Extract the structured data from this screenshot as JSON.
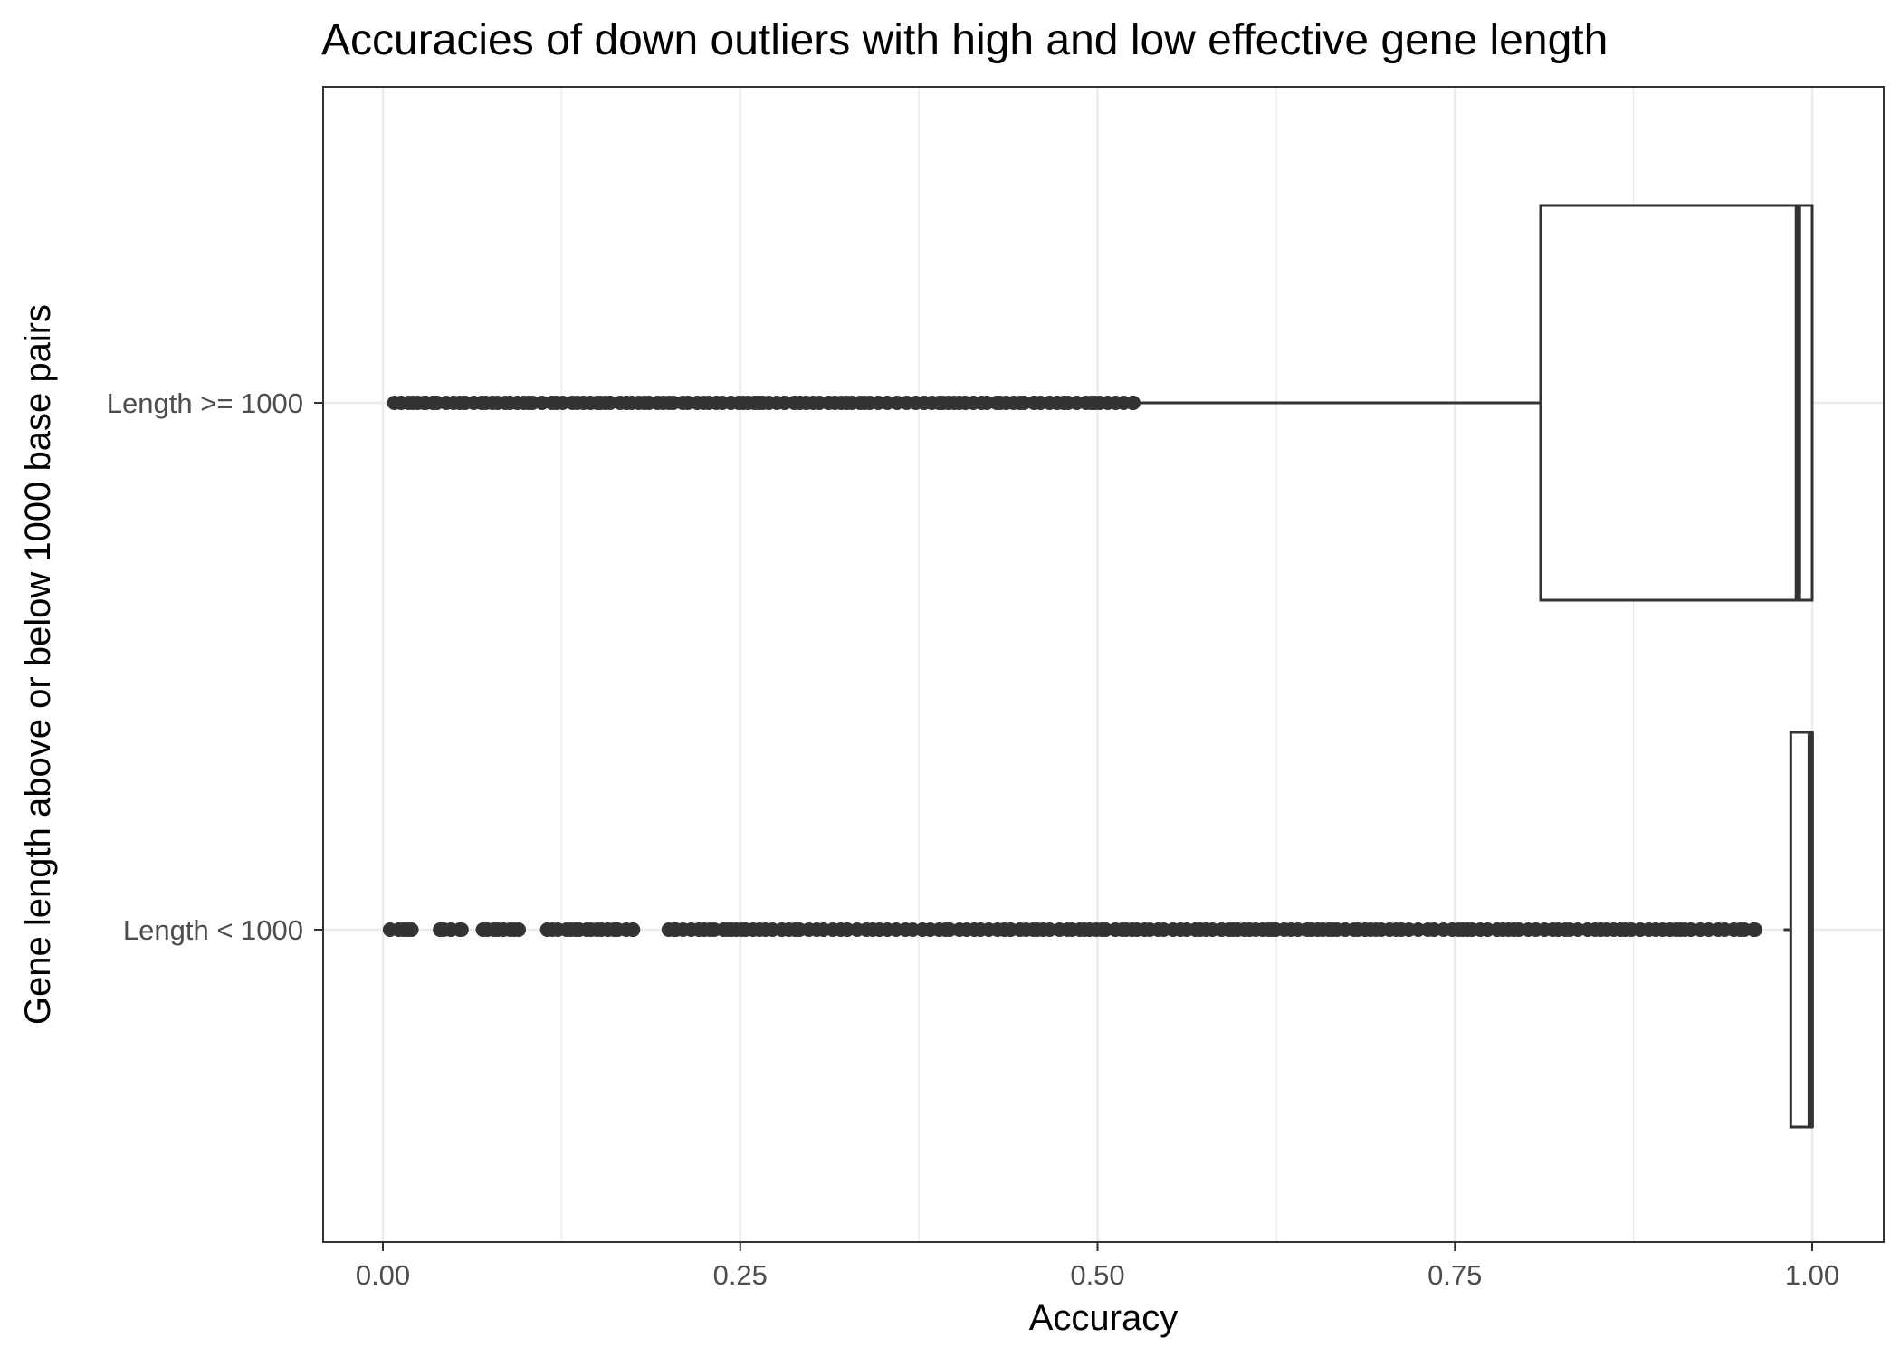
{
  "chart_data": {
    "type": "boxplot",
    "orientation": "horizontal",
    "title": "Accuracies of down outliers with high and low effective gene length",
    "xlabel": "Accuracy",
    "ylabel": "Gene length above or below 1000 base pairs",
    "xlim": [
      -0.02,
      1.03
    ],
    "x_ticks": [
      {
        "value": 0.0,
        "label": "0.00"
      },
      {
        "value": 0.25,
        "label": "0.25"
      },
      {
        "value": 0.5,
        "label": "0.50"
      },
      {
        "value": 0.75,
        "label": "0.75"
      },
      {
        "value": 1.0,
        "label": "1.00"
      }
    ],
    "categories": [
      "Length >= 1000",
      "Length < 1000"
    ],
    "grid": true,
    "legend": "none",
    "colors": {
      "box_line": "#333333",
      "points": "#333333",
      "grid": "#ebebeb",
      "panel_border": "#333333"
    },
    "boxes": [
      {
        "category": "Length >= 1000",
        "whisker_low": 0.525,
        "q1": 0.81,
        "median": 0.99,
        "q3": 1.0,
        "whisker_high": 1.0,
        "outlier_ranges": [
          [
            0.008,
            0.03
          ],
          [
            0.035,
            0.15
          ],
          [
            0.152,
            0.525
          ]
        ]
      },
      {
        "category": "Length < 1000",
        "whisker_low": 0.98,
        "q1": 0.985,
        "median": 0.999,
        "q3": 1.0,
        "whisker_high": 1.0,
        "outlier_ranges": [
          [
            0.005,
            0.02
          ],
          [
            0.04,
            0.055
          ],
          [
            0.07,
            0.095
          ],
          [
            0.115,
            0.175
          ],
          [
            0.2,
            0.205
          ],
          [
            0.21,
            0.45
          ],
          [
            0.455,
            0.96
          ]
        ]
      }
    ]
  }
}
